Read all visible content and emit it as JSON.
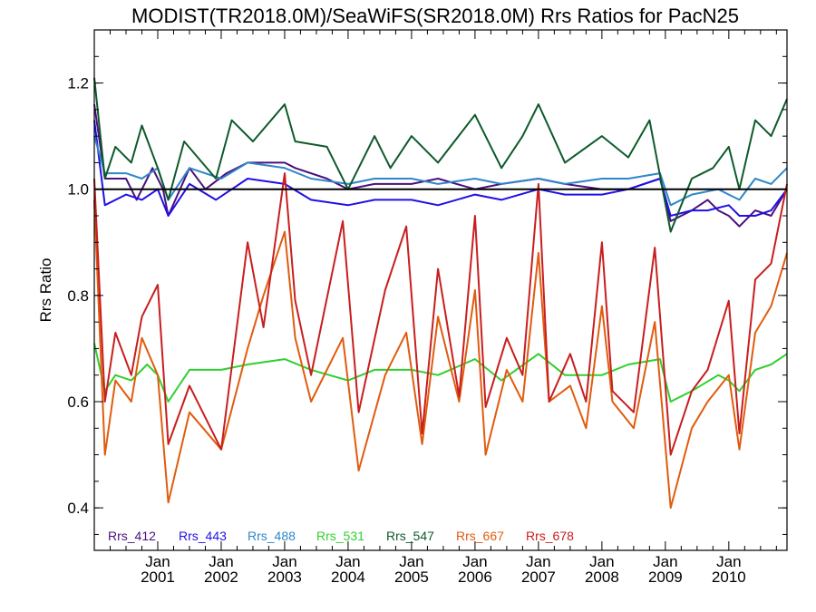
{
  "chart_data": {
    "type": "line",
    "title": "MODIST(TR2018.0M)/SeaWiFS(SR2018.0M)  Rrs Ratios for PacN25",
    "xlabel": "",
    "ylabel": "Rrs Ratio",
    "xlim": [
      "2000-01",
      "2010-12"
    ],
    "ylim": [
      0.32,
      1.3
    ],
    "y_ticks": [
      0.4,
      0.6,
      0.8,
      1.0,
      1.2
    ],
    "y_tick_labels": [
      "0.4",
      "0.6",
      "0.8",
      "1.0",
      "1.2"
    ],
    "x_ticks": [
      {
        "month": "2001-01",
        "line1": "Jan",
        "line2": "2001"
      },
      {
        "month": "2002-01",
        "line1": "Jan",
        "line2": "2002"
      },
      {
        "month": "2003-01",
        "line1": "Jan",
        "line2": "2003"
      },
      {
        "month": "2004-01",
        "line1": "Jan",
        "line2": "2004"
      },
      {
        "month": "2005-01",
        "line1": "Jan",
        "line2": "2005"
      },
      {
        "month": "2006-01",
        "line1": "Jan",
        "line2": "2006"
      },
      {
        "month": "2007-01",
        "line1": "Jan",
        "line2": "2007"
      },
      {
        "month": "2008-01",
        "line1": "Jan",
        "line2": "2008"
      },
      {
        "month": "2009-01",
        "line1": "Jan",
        "line2": "2009"
      },
      {
        "month": "2010-01",
        "line1": "Jan",
        "line2": "2010"
      }
    ],
    "reference_line": 1.0,
    "grid": false,
    "legend_position": "bottom-left",
    "series": [
      {
        "name": "Rrs_412",
        "color": "#4b0f7e",
        "points": [
          [
            "2000-01",
            1.16
          ],
          [
            "2000-03",
            1.02
          ],
          [
            "2000-07",
            1.02
          ],
          [
            "2000-09",
            0.98
          ],
          [
            "2000-12",
            1.04
          ],
          [
            "2001-02",
            1.0
          ],
          [
            "2001-03",
            0.95
          ],
          [
            "2001-07",
            1.04
          ],
          [
            "2001-10",
            1.0
          ],
          [
            "2002-02",
            1.03
          ],
          [
            "2002-06",
            1.05
          ],
          [
            "2003-01",
            1.05
          ],
          [
            "2003-03",
            1.04
          ],
          [
            "2003-09",
            1.02
          ],
          [
            "2004-01",
            1.0
          ],
          [
            "2004-06",
            1.01
          ],
          [
            "2005-01",
            1.01
          ],
          [
            "2005-06",
            1.02
          ],
          [
            "2006-01",
            1.0
          ],
          [
            "2006-06",
            1.01
          ],
          [
            "2007-01",
            1.02
          ],
          [
            "2007-06",
            1.01
          ],
          [
            "2008-01",
            1.0
          ],
          [
            "2008-06",
            1.0
          ],
          [
            "2008-12",
            1.02
          ],
          [
            "2009-02",
            0.94
          ],
          [
            "2009-06",
            0.96
          ],
          [
            "2009-09",
            0.98
          ],
          [
            "2009-11",
            0.96
          ],
          [
            "2010-01",
            0.95
          ],
          [
            "2010-03",
            0.93
          ],
          [
            "2010-06",
            0.96
          ],
          [
            "2010-09",
            0.95
          ],
          [
            "2010-12",
            1.0
          ]
        ]
      },
      {
        "name": "Rrs_443",
        "color": "#1f10e6",
        "points": [
          [
            "2000-01",
            1.13
          ],
          [
            "2000-03",
            0.97
          ],
          [
            "2000-07",
            0.99
          ],
          [
            "2000-10",
            0.98
          ],
          [
            "2001-01",
            1.0
          ],
          [
            "2001-03",
            0.95
          ],
          [
            "2001-07",
            1.01
          ],
          [
            "2001-12",
            0.98
          ],
          [
            "2002-06",
            1.02
          ],
          [
            "2003-01",
            1.01
          ],
          [
            "2003-06",
            0.98
          ],
          [
            "2004-01",
            0.97
          ],
          [
            "2004-06",
            0.98
          ],
          [
            "2005-01",
            0.98
          ],
          [
            "2005-06",
            0.97
          ],
          [
            "2006-01",
            0.99
          ],
          [
            "2006-06",
            0.98
          ],
          [
            "2007-01",
            1.0
          ],
          [
            "2007-06",
            0.99
          ],
          [
            "2008-01",
            0.99
          ],
          [
            "2008-06",
            1.0
          ],
          [
            "2008-12",
            1.02
          ],
          [
            "2009-02",
            0.95
          ],
          [
            "2009-06",
            0.96
          ],
          [
            "2009-09",
            0.96
          ],
          [
            "2010-01",
            0.97
          ],
          [
            "2010-03",
            0.95
          ],
          [
            "2010-06",
            0.95
          ],
          [
            "2010-09",
            0.96
          ],
          [
            "2010-12",
            1.0
          ]
        ]
      },
      {
        "name": "Rrs_488",
        "color": "#2f86c8",
        "points": [
          [
            "2000-01",
            1.1
          ],
          [
            "2000-03",
            1.03
          ],
          [
            "2000-07",
            1.03
          ],
          [
            "2000-10",
            1.02
          ],
          [
            "2001-01",
            1.04
          ],
          [
            "2001-03",
            0.98
          ],
          [
            "2001-07",
            1.04
          ],
          [
            "2002-01",
            1.02
          ],
          [
            "2002-06",
            1.05
          ],
          [
            "2003-01",
            1.04
          ],
          [
            "2003-06",
            1.02
          ],
          [
            "2004-01",
            1.01
          ],
          [
            "2004-06",
            1.02
          ],
          [
            "2005-01",
            1.02
          ],
          [
            "2005-06",
            1.01
          ],
          [
            "2006-01",
            1.02
          ],
          [
            "2006-06",
            1.01
          ],
          [
            "2007-01",
            1.02
          ],
          [
            "2007-06",
            1.01
          ],
          [
            "2008-01",
            1.02
          ],
          [
            "2008-06",
            1.02
          ],
          [
            "2008-12",
            1.03
          ],
          [
            "2009-02",
            0.97
          ],
          [
            "2009-06",
            0.99
          ],
          [
            "2009-11",
            1.0
          ],
          [
            "2010-01",
            0.99
          ],
          [
            "2010-03",
            0.98
          ],
          [
            "2010-06",
            1.02
          ],
          [
            "2010-09",
            1.01
          ],
          [
            "2010-12",
            1.04
          ]
        ]
      },
      {
        "name": "Rrs_531",
        "color": "#2fd02f",
        "points": [
          [
            "2000-01",
            0.71
          ],
          [
            "2000-03",
            0.62
          ],
          [
            "2000-05",
            0.65
          ],
          [
            "2000-08",
            0.64
          ],
          [
            "2000-11",
            0.67
          ],
          [
            "2001-01",
            0.65
          ],
          [
            "2001-03",
            0.6
          ],
          [
            "2001-07",
            0.66
          ],
          [
            "2002-01",
            0.66
          ],
          [
            "2002-06",
            0.67
          ],
          [
            "2003-01",
            0.68
          ],
          [
            "2003-06",
            0.66
          ],
          [
            "2004-01",
            0.64
          ],
          [
            "2004-06",
            0.66
          ],
          [
            "2005-01",
            0.66
          ],
          [
            "2005-06",
            0.65
          ],
          [
            "2006-01",
            0.68
          ],
          [
            "2006-06",
            0.64
          ],
          [
            "2007-01",
            0.69
          ],
          [
            "2007-06",
            0.65
          ],
          [
            "2008-01",
            0.65
          ],
          [
            "2008-06",
            0.67
          ],
          [
            "2008-12",
            0.68
          ],
          [
            "2009-02",
            0.6
          ],
          [
            "2009-06",
            0.62
          ],
          [
            "2009-11",
            0.65
          ],
          [
            "2010-01",
            0.64
          ],
          [
            "2010-03",
            0.62
          ],
          [
            "2010-06",
            0.66
          ],
          [
            "2010-09",
            0.67
          ],
          [
            "2010-12",
            0.69
          ]
        ]
      },
      {
        "name": "Rrs_547",
        "color": "#0d5a2a",
        "points": [
          [
            "2000-01",
            1.21
          ],
          [
            "2000-03",
            1.02
          ],
          [
            "2000-05",
            1.08
          ],
          [
            "2000-08",
            1.05
          ],
          [
            "2000-10",
            1.12
          ],
          [
            "2001-01",
            1.04
          ],
          [
            "2001-03",
            0.98
          ],
          [
            "2001-06",
            1.09
          ],
          [
            "2001-12",
            1.02
          ],
          [
            "2002-03",
            1.13
          ],
          [
            "2002-07",
            1.09
          ],
          [
            "2003-01",
            1.16
          ],
          [
            "2003-03",
            1.09
          ],
          [
            "2003-09",
            1.08
          ],
          [
            "2004-01",
            1.0
          ],
          [
            "2004-06",
            1.1
          ],
          [
            "2004-09",
            1.04
          ],
          [
            "2005-01",
            1.1
          ],
          [
            "2005-06",
            1.05
          ],
          [
            "2006-01",
            1.14
          ],
          [
            "2006-06",
            1.04
          ],
          [
            "2006-10",
            1.1
          ],
          [
            "2007-01",
            1.16
          ],
          [
            "2007-06",
            1.05
          ],
          [
            "2008-01",
            1.1
          ],
          [
            "2008-06",
            1.06
          ],
          [
            "2008-10",
            1.13
          ],
          [
            "2009-02",
            0.92
          ],
          [
            "2009-06",
            1.02
          ],
          [
            "2009-10",
            1.04
          ],
          [
            "2010-01",
            1.08
          ],
          [
            "2010-03",
            1.0
          ],
          [
            "2010-06",
            1.13
          ],
          [
            "2010-09",
            1.1
          ],
          [
            "2010-12",
            1.17
          ]
        ]
      },
      {
        "name": "Rrs_667",
        "color": "#e05c0e",
        "points": [
          [
            "2000-01",
            0.98
          ],
          [
            "2000-03",
            0.5
          ],
          [
            "2000-05",
            0.64
          ],
          [
            "2000-08",
            0.6
          ],
          [
            "2000-10",
            0.72
          ],
          [
            "2001-01",
            0.65
          ],
          [
            "2001-03",
            0.41
          ],
          [
            "2001-07",
            0.58
          ],
          [
            "2002-01",
            0.51
          ],
          [
            "2002-06",
            0.7
          ],
          [
            "2002-09",
            0.8
          ],
          [
            "2003-01",
            0.92
          ],
          [
            "2003-03",
            0.72
          ],
          [
            "2003-06",
            0.6
          ],
          [
            "2003-12",
            0.72
          ],
          [
            "2004-03",
            0.47
          ],
          [
            "2004-08",
            0.65
          ],
          [
            "2004-12",
            0.73
          ],
          [
            "2005-03",
            0.52
          ],
          [
            "2005-06",
            0.76
          ],
          [
            "2005-10",
            0.6
          ],
          [
            "2006-01",
            0.81
          ],
          [
            "2006-03",
            0.5
          ],
          [
            "2006-07",
            0.66
          ],
          [
            "2006-10",
            0.6
          ],
          [
            "2007-01",
            0.88
          ],
          [
            "2007-03",
            0.6
          ],
          [
            "2007-07",
            0.63
          ],
          [
            "2007-10",
            0.55
          ],
          [
            "2008-01",
            0.78
          ],
          [
            "2008-03",
            0.6
          ],
          [
            "2008-07",
            0.55
          ],
          [
            "2008-11",
            0.75
          ],
          [
            "2009-02",
            0.4
          ],
          [
            "2009-06",
            0.55
          ],
          [
            "2009-09",
            0.6
          ],
          [
            "2010-01",
            0.65
          ],
          [
            "2010-03",
            0.51
          ],
          [
            "2010-06",
            0.73
          ],
          [
            "2010-09",
            0.78
          ],
          [
            "2010-12",
            0.88
          ]
        ]
      },
      {
        "name": "Rrs_678",
        "color": "#c81e1e",
        "points": [
          [
            "2000-01",
            1.02
          ],
          [
            "2000-03",
            0.6
          ],
          [
            "2000-05",
            0.73
          ],
          [
            "2000-08",
            0.65
          ],
          [
            "2000-10",
            0.76
          ],
          [
            "2001-01",
            0.82
          ],
          [
            "2001-03",
            0.52
          ],
          [
            "2001-07",
            0.63
          ],
          [
            "2002-01",
            0.51
          ],
          [
            "2002-06",
            0.9
          ],
          [
            "2002-09",
            0.74
          ],
          [
            "2003-01",
            1.03
          ],
          [
            "2003-03",
            0.79
          ],
          [
            "2003-06",
            0.65
          ],
          [
            "2003-12",
            0.94
          ],
          [
            "2004-03",
            0.58
          ],
          [
            "2004-08",
            0.81
          ],
          [
            "2004-12",
            0.93
          ],
          [
            "2005-03",
            0.54
          ],
          [
            "2005-06",
            0.85
          ],
          [
            "2005-10",
            0.61
          ],
          [
            "2006-01",
            0.95
          ],
          [
            "2006-03",
            0.59
          ],
          [
            "2006-07",
            0.72
          ],
          [
            "2006-10",
            0.65
          ],
          [
            "2007-01",
            1.01
          ],
          [
            "2007-03",
            0.6
          ],
          [
            "2007-07",
            0.69
          ],
          [
            "2007-10",
            0.6
          ],
          [
            "2008-01",
            0.9
          ],
          [
            "2008-03",
            0.62
          ],
          [
            "2008-07",
            0.58
          ],
          [
            "2008-11",
            0.89
          ],
          [
            "2009-02",
            0.5
          ],
          [
            "2009-06",
            0.62
          ],
          [
            "2009-09",
            0.66
          ],
          [
            "2010-01",
            0.79
          ],
          [
            "2010-03",
            0.54
          ],
          [
            "2010-06",
            0.83
          ],
          [
            "2010-09",
            0.86
          ],
          [
            "2010-12",
            1.01
          ]
        ]
      }
    ]
  }
}
